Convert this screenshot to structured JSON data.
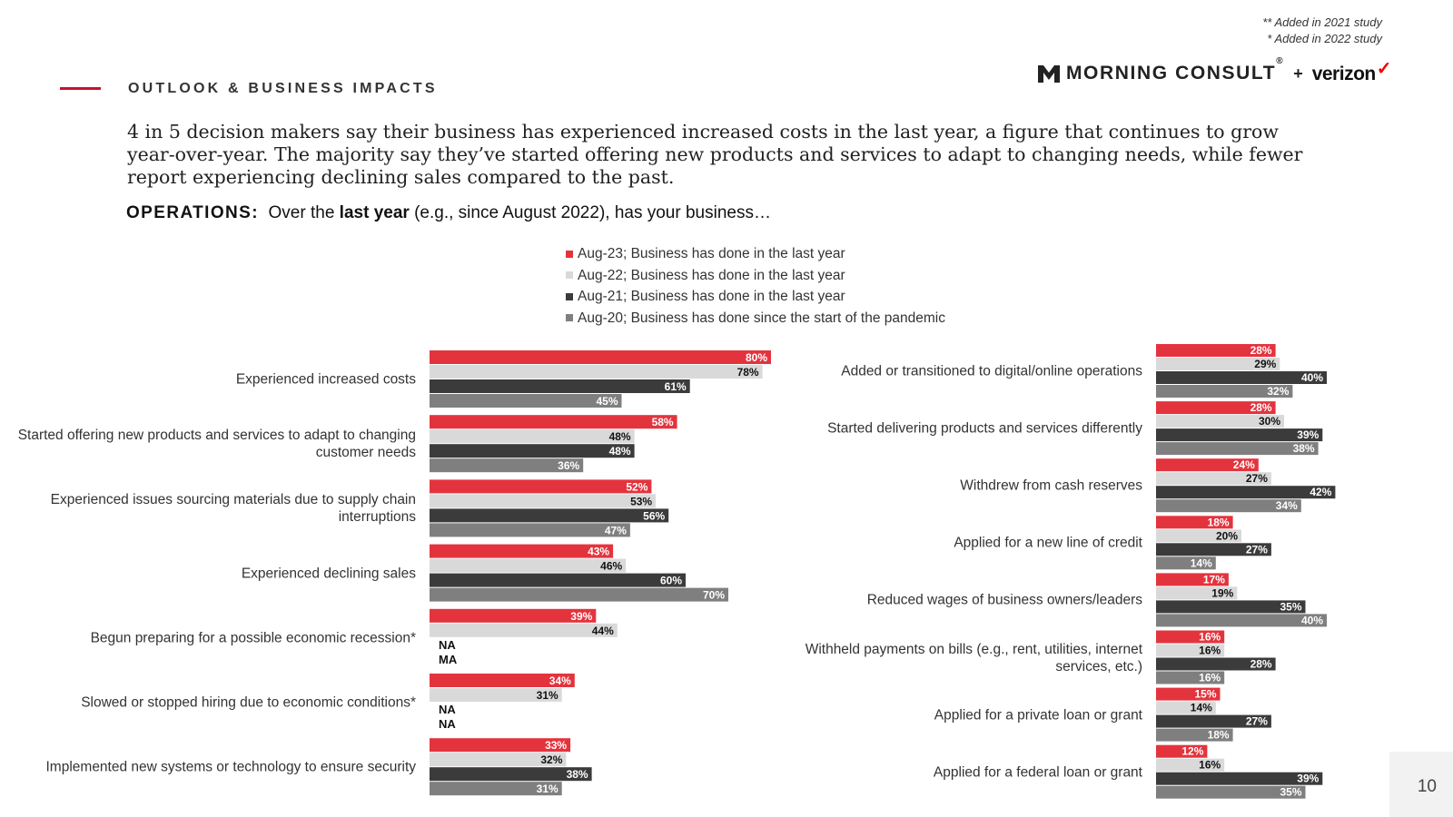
{
  "footnotes": [
    "** Added in 2021 study",
    "* Added in 2022 study"
  ],
  "section_title": "OUTLOOK & BUSINESS IMPACTS",
  "logo": {
    "mc_text": "MORNING CONSULT",
    "reg": "®",
    "plus": "+",
    "vz_text": "verizon",
    "vz_check": "✓"
  },
  "headline": "4 in 5 decision makers say their business has experienced increased costs in the last year, a figure that continues to grow year-over-year. The majority say they’ve started offering new products and services to adapt to changing needs, while fewer report experiencing declining sales compared to the past.",
  "question": {
    "label": "OPERATIONS:",
    "pre": "Over the",
    "bold": "last year",
    "post": "(e.g., since August 2022), has your business…"
  },
  "page_number": "10",
  "colors": {
    "aug23": "#e3343e",
    "aug22": "#d9d9d9",
    "aug21": "#3b3b3b",
    "aug20": "#7f7f7f",
    "accent": "#c8102e"
  },
  "chart_data": [
    {
      "type": "bar",
      "orientation": "horizontal",
      "series": [
        {
          "name": "Aug-23; Business has done in the last year",
          "values": [
            80,
            58,
            52,
            43,
            39,
            34,
            33
          ]
        },
        {
          "name": "Aug-22; Business has done in the last year",
          "values": [
            78,
            48,
            53,
            46,
            44,
            31,
            32
          ]
        },
        {
          "name": "Aug-21; Business has done in the last year",
          "values": [
            61,
            48,
            56,
            60,
            "NA",
            "NA",
            38
          ]
        },
        {
          "name": "Aug-20; Business has done since the start of the pandemic",
          "values": [
            45,
            36,
            47,
            70,
            "MA",
            "NA",
            31
          ]
        }
      ],
      "categories": [
        "Experienced increased costs",
        "Started offering new products and services to adapt to changing customer needs",
        "Experienced issues sourcing materials due to supply chain interruptions",
        "Experienced declining sales",
        "Begun preparing for a possible economic recession*",
        "Slowed or stopped hiring due to economic conditions*",
        "Implemented new systems or technology to ensure security"
      ],
      "xlim": [
        0,
        100
      ]
    },
    {
      "type": "bar",
      "orientation": "horizontal",
      "series": [
        {
          "name": "Aug-23; Business has done in the last year",
          "values": [
            28,
            28,
            24,
            18,
            17,
            16,
            15,
            12
          ]
        },
        {
          "name": "Aug-22; Business has done in the last year",
          "values": [
            29,
            30,
            27,
            20,
            19,
            16,
            14,
            16
          ]
        },
        {
          "name": "Aug-21; Business has done in the last year",
          "values": [
            40,
            39,
            42,
            27,
            35,
            28,
            27,
            39
          ]
        },
        {
          "name": "Aug-20; Business has done since the start of the pandemic",
          "values": [
            32,
            38,
            34,
            14,
            40,
            16,
            18,
            35
          ]
        }
      ],
      "categories": [
        "Added or transitioned to digital/online operations",
        "Started delivering products and services differently",
        "Withdrew from cash reserves",
        "Applied for a new line of credit",
        "Reduced wages of business owners/leaders",
        "Withheld payments on bills (e.g., rent, utilities, internet services, etc.)",
        "Applied for a private loan or grant",
        "Applied for a federal loan or grant"
      ],
      "xlim": [
        0,
        100
      ]
    }
  ]
}
